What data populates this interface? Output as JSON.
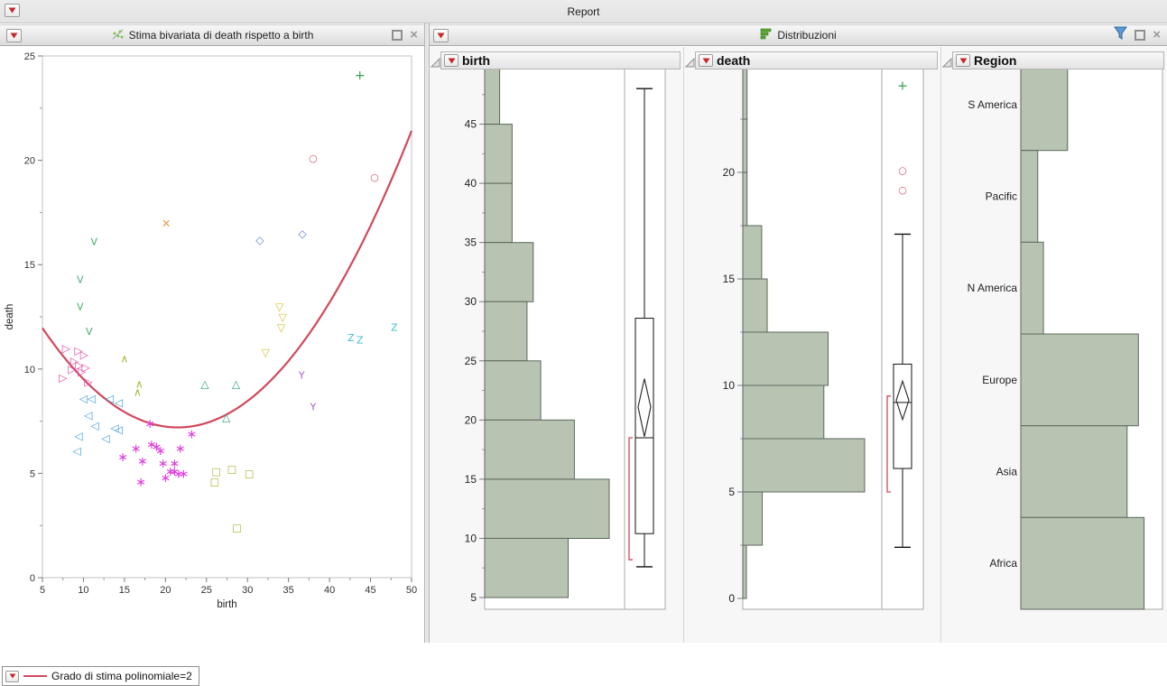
{
  "window": {
    "title": "Report"
  },
  "left_panel": {
    "title": "Stima bivariata di death rispetto a birth",
    "legend_label": "Grado di stima polinomiale=2"
  },
  "right_panel": {
    "title": "Distribuzioni"
  },
  "colors": {
    "fit_line": "#d2485c",
    "histogram_fill": "#b7c4b1",
    "histogram_stroke": "#5d675d",
    "shortest_half_bracket": "#d2485c",
    "red_triangle_accent": "#c62828",
    "funnel_icon": "#5b9bd5",
    "dist_icon_green": "#55a82e"
  },
  "chart_data": [
    {
      "id": "bivariate-scatter",
      "type": "scatter",
      "title": "Stima bivariata di death rispetto a birth",
      "xlabel": "birth",
      "ylabel": "death",
      "xlim": [
        5,
        50
      ],
      "ylim": [
        0,
        25
      ],
      "xticks": [
        5,
        10,
        15,
        20,
        25,
        30,
        35,
        40,
        45,
        50
      ],
      "yticks": [
        0,
        5,
        10,
        15,
        20,
        25
      ],
      "grid": false,
      "fit_curve": {
        "label": "Grado di stima polinomiale=2",
        "form": "y = 7.2 + 0.0175*(x-21.5)^2",
        "vertex_x": 21.5,
        "vertex_y": 7.2,
        "coef": 0.0175,
        "color": "#d2485c"
      },
      "series": [
        {
          "name": "group-triangle-right",
          "glyph": "▷",
          "size": 12,
          "color": "#e048a8",
          "points": [
            [
              7.9,
              11.0
            ],
            [
              9.4,
              10.9
            ],
            [
              10.1,
              10.7
            ],
            [
              8.9,
              10.4
            ],
            [
              9.5,
              10.2
            ],
            [
              10.3,
              10.1
            ],
            [
              9.8,
              9.9
            ],
            [
              8.6,
              10.0
            ],
            [
              7.5,
              9.6
            ],
            [
              10.6,
              9.4
            ]
          ]
        },
        {
          "name": "group-triangle-left",
          "glyph": "◁",
          "size": 12,
          "color": "#42a4d9",
          "points": [
            [
              10.0,
              8.6
            ],
            [
              11.0,
              8.6
            ],
            [
              13.2,
              8.6
            ],
            [
              14.3,
              8.4
            ],
            [
              10.6,
              7.8
            ],
            [
              11.4,
              7.3
            ],
            [
              13.8,
              7.2
            ],
            [
              14.3,
              7.1
            ],
            [
              12.7,
              6.7
            ],
            [
              9.4,
              6.8
            ],
            [
              9.2,
              6.1
            ]
          ]
        },
        {
          "name": "group-asterisk",
          "glyph": "∗",
          "size": 14,
          "color": "#dd3fdd",
          "points": [
            [
              18.1,
              7.4
            ],
            [
              23.2,
              6.9
            ],
            [
              16.4,
              6.2
            ],
            [
              18.3,
              6.4
            ],
            [
              18.9,
              6.3
            ],
            [
              19.4,
              6.1
            ],
            [
              21.8,
              6.2
            ],
            [
              14.8,
              5.8
            ],
            [
              17.2,
              5.6
            ],
            [
              19.7,
              5.5
            ],
            [
              21.1,
              5.5
            ],
            [
              20.6,
              5.1
            ],
            [
              21.1,
              5.1
            ],
            [
              21.6,
              5.0
            ],
            [
              22.2,
              5.0
            ],
            [
              20.0,
              4.8
            ],
            [
              17.0,
              4.6
            ]
          ]
        },
        {
          "name": "group-caret-up",
          "glyph": "∧",
          "size": 12,
          "color": "#a9b536",
          "points": [
            [
              15.0,
              10.5
            ],
            [
              16.8,
              9.3
            ],
            [
              16.6,
              8.9
            ]
          ]
        },
        {
          "name": "group-triangle-up",
          "glyph": "△",
          "size": 12,
          "color": "#2aa583",
          "points": [
            [
              24.8,
              9.3
            ],
            [
              28.6,
              9.3
            ],
            [
              27.4,
              7.7
            ]
          ]
        },
        {
          "name": "group-square",
          "glyph": "□",
          "size": 11,
          "color": "#a8b02f",
          "points": [
            [
              26.2,
              5.1
            ],
            [
              28.1,
              5.2
            ],
            [
              30.2,
              5.0
            ],
            [
              26.0,
              4.6
            ],
            [
              28.7,
              2.4
            ]
          ]
        },
        {
          "name": "group-triangle-down",
          "glyph": "▽",
          "size": 12,
          "color": "#d2c22f",
          "points": [
            [
              33.9,
              13.0
            ],
            [
              34.3,
              12.5
            ],
            [
              34.1,
              12.0
            ],
            [
              32.2,
              10.8
            ]
          ]
        },
        {
          "name": "group-letter-y",
          "glyph": "Y",
          "size": 11,
          "color": "#a55bd8",
          "points": [
            [
              36.6,
              9.7
            ],
            [
              38.0,
              8.2
            ]
          ]
        },
        {
          "name": "group-letter-z",
          "glyph": "Z",
          "size": 11,
          "color": "#3fbccb",
          "points": [
            [
              42.6,
              11.5
            ],
            [
              43.7,
              11.4
            ],
            [
              47.9,
              12.0
            ]
          ]
        },
        {
          "name": "group-letter-v",
          "glyph": "V",
          "size": 11,
          "color": "#44ad6b",
          "points": [
            [
              11.3,
              16.1
            ],
            [
              9.6,
              14.3
            ],
            [
              9.6,
              13.0
            ],
            [
              10.7,
              11.8
            ]
          ]
        },
        {
          "name": "group-cross-x",
          "glyph": "×",
          "size": 13,
          "color": "#e39a42",
          "points": [
            [
              20.1,
              17.0
            ]
          ]
        },
        {
          "name": "group-circle",
          "glyph": "○",
          "size": 11,
          "color": "#d4566b",
          "points": [
            [
              38.0,
              20.1
            ],
            [
              45.5,
              19.2
            ]
          ]
        },
        {
          "name": "group-diamond",
          "glyph": "◇",
          "size": 12,
          "color": "#5e7ad9",
          "points": [
            [
              31.5,
              16.2
            ],
            [
              36.7,
              16.5
            ]
          ]
        },
        {
          "name": "group-plus",
          "glyph": "+",
          "size": 14,
          "color": "#33a04a",
          "points": [
            [
              43.7,
              24.1
            ]
          ]
        }
      ]
    },
    {
      "id": "birth-distribution",
      "type": "bar",
      "subtype": "histogram",
      "title": "birth",
      "orientation": "horizontal",
      "value_scale": "relative-to-max-bin",
      "axis": {
        "min": 5,
        "max": 50,
        "major_ticks": [
          5,
          10,
          15,
          20,
          25,
          30,
          35,
          40,
          45,
          50
        ],
        "minor_step": 2.5
      },
      "bins": [
        {
          "lo": 45,
          "hi": 50,
          "rel": 0.12
        },
        {
          "lo": 40,
          "hi": 45,
          "rel": 0.22
        },
        {
          "lo": 35,
          "hi": 40,
          "rel": 0.22
        },
        {
          "lo": 30,
          "hi": 35,
          "rel": 0.39
        },
        {
          "lo": 25,
          "hi": 30,
          "rel": 0.34
        },
        {
          "lo": 20,
          "hi": 25,
          "rel": 0.45
        },
        {
          "lo": 15,
          "hi": 20,
          "rel": 0.72
        },
        {
          "lo": 10,
          "hi": 15,
          "rel": 1.0
        },
        {
          "lo": 5,
          "hi": 10,
          "rel": 0.67
        }
      ],
      "boxplot": {
        "whisker_low": 7.6,
        "q1": 10.4,
        "median": 18.5,
        "q3": 28.6,
        "whisker_high": 48.0,
        "mean_diamond": {
          "low": 18.6,
          "mid": 21.1,
          "high": 23.5
        },
        "shortest_half": {
          "low": 8.2,
          "high": 18.5
        },
        "outliers": []
      }
    },
    {
      "id": "death-distribution",
      "type": "bar",
      "subtype": "histogram",
      "title": "death",
      "orientation": "horizontal",
      "value_scale": "relative-to-max-bin",
      "axis": {
        "min": 0,
        "max": 25,
        "major_ticks": [
          0,
          5,
          10,
          15,
          20,
          25
        ],
        "minor_step": 2.5
      },
      "bins": [
        {
          "lo": 22.5,
          "hi": 25,
          "rel": 0.035
        },
        {
          "lo": 20,
          "hi": 22.5,
          "rel": 0.035
        },
        {
          "lo": 17.5,
          "hi": 20,
          "rel": 0.035
        },
        {
          "lo": 15,
          "hi": 17.5,
          "rel": 0.155
        },
        {
          "lo": 12.5,
          "hi": 15,
          "rel": 0.2
        },
        {
          "lo": 10,
          "hi": 12.5,
          "rel": 0.7
        },
        {
          "lo": 7.5,
          "hi": 10,
          "rel": 0.665
        },
        {
          "lo": 5,
          "hi": 7.5,
          "rel": 1.0
        },
        {
          "lo": 2.5,
          "hi": 5,
          "rel": 0.16
        },
        {
          "lo": 0,
          "hi": 2.5,
          "rel": 0.03
        }
      ],
      "boxplot": {
        "whisker_low": 2.4,
        "q1": 6.1,
        "median": 9.2,
        "q3": 11.0,
        "whisker_high": 17.1,
        "mean_diamond": {
          "low": 8.4,
          "mid": 9.3,
          "high": 10.2
        },
        "shortest_half": {
          "low": 5.0,
          "high": 9.5
        },
        "outliers": [
          {
            "glyph": "+",
            "color": "#33a04a",
            "value": 24.1
          },
          {
            "glyph": "○",
            "color": "#d4566b",
            "value": 20.1
          },
          {
            "glyph": "○",
            "color": "#d4566b",
            "value": 19.2
          }
        ]
      }
    },
    {
      "id": "region-distribution",
      "type": "bar",
      "title": "Region",
      "orientation": "horizontal",
      "value_scale": "relative-to-plot-width",
      "categories": [
        "S America",
        "Pacific",
        "N America",
        "Europe",
        "Asia",
        "Africa"
      ],
      "values_rel": [
        0.33,
        0.12,
        0.16,
        0.83,
        0.75,
        0.87
      ]
    }
  ]
}
